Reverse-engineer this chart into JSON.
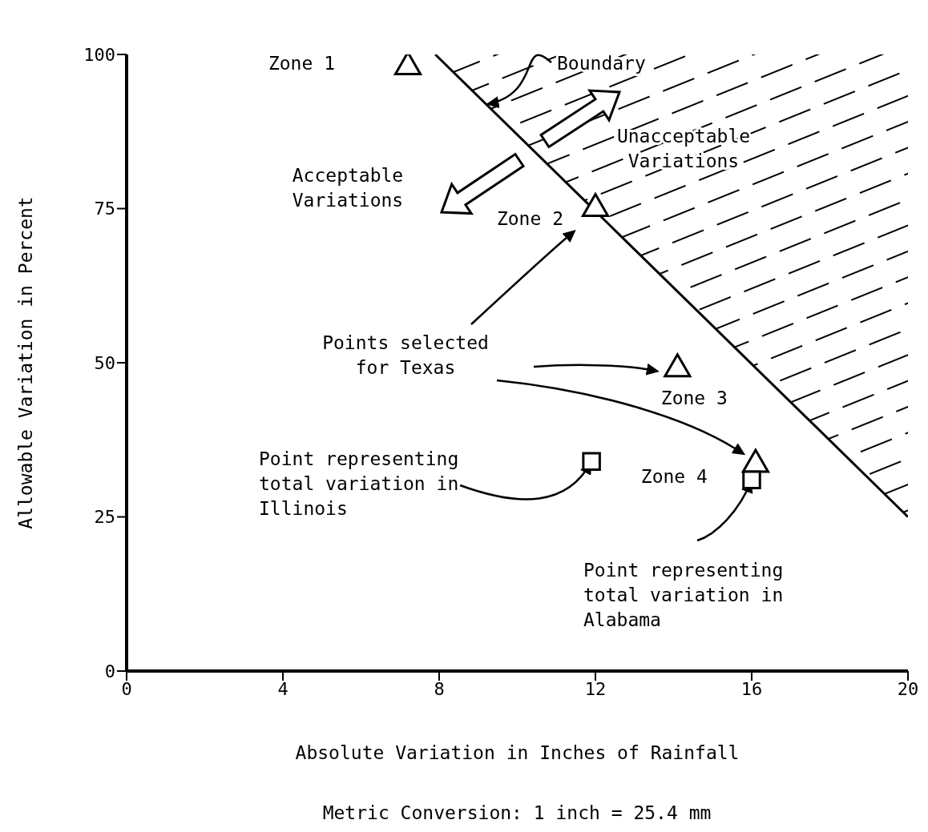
{
  "chart_data": {
    "type": "scatter",
    "xlabel": "Absolute Variation in Inches of Rainfall",
    "ylabel": "Allowable Variation in Percent",
    "xlim": [
      0,
      20
    ],
    "ylim": [
      0,
      100
    ],
    "xticks": [
      0,
      4,
      8,
      12,
      16,
      20
    ],
    "yticks": [
      0,
      25,
      50,
      75,
      100
    ],
    "series": [
      {
        "marker": "triangle",
        "color": "#000000",
        "x": [
          7.2,
          12,
          14.1,
          16.1
        ],
        "values": [
          98,
          75,
          49,
          33.5
        ]
      },
      {
        "marker": "square",
        "color": "#000000",
        "x": [
          11.9,
          16
        ],
        "values": [
          34,
          31
        ]
      },
      {
        "type": "line",
        "marker": "none",
        "color": "#000000",
        "x": [
          7.9,
          20
        ],
        "values": [
          100,
          25
        ]
      }
    ],
    "annotations": [
      "Zone 1",
      {
        "text": "Boundary",
        "x": 9.2,
        "y": 91.9
      },
      "Unacceptable\nVariations",
      "Acceptable\nVariations",
      {
        "text": "Zone 2",
        "x": 12,
        "y": 75
      },
      "Points selected\nfor Texas",
      {
        "text": "Zone 3",
        "x": 14.1,
        "y": 49
      },
      {
        "text": "Zone 4",
        "x": 16.1,
        "y": 33.5
      },
      {
        "text": "Point representing\ntotal variation in\nIllinois",
        "x": 11.9,
        "y": 34
      },
      {
        "text": "Point representing\ntotal variation in\nAlabama",
        "x": 16,
        "y": 31
      },
      "Metric Conversion:  1 inch = 25.4 mm"
    ]
  }
}
